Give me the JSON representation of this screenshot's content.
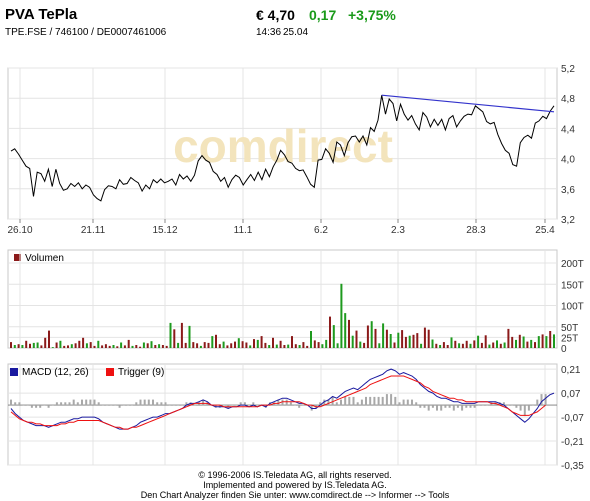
{
  "header": {
    "name": "PVA TePla",
    "price": "€ 4,70",
    "change": "0,17",
    "change_pct": "+3,75%",
    "identifiers": "TPE.FSE  /  746100  /  DE0007461006",
    "time": "14:36",
    "date": "25.04",
    "positive_color": "#1a9a1a"
  },
  "chart_data": [
    {
      "type": "line",
      "panel": "price",
      "x_tick_labels": [
        "26.10",
        "21.11",
        "15.12",
        "11.1",
        "6.2",
        "2.3",
        "28.3",
        "25.4"
      ],
      "y_ticks": [
        "3,2",
        "3,6",
        "4,0",
        "4,4",
        "4,8",
        "5,2"
      ],
      "ylim": [
        3.2,
        5.2
      ],
      "y_axis_side": "right",
      "grid": true,
      "line_color": "#000000",
      "watermark": "comdirect",
      "values": [
        4.1,
        4.13,
        4.06,
        3.98,
        3.9,
        3.87,
        3.5,
        3.82,
        3.8,
        3.7,
        3.86,
        3.63,
        3.86,
        3.67,
        3.58,
        3.6,
        3.67,
        3.63,
        3.68,
        3.6,
        3.65,
        3.62,
        3.52,
        3.47,
        3.44,
        3.59,
        3.64,
        3.63,
        3.6,
        3.72,
        3.66,
        3.67,
        3.75,
        3.71,
        3.68,
        3.57,
        3.65,
        3.6,
        3.72,
        3.68,
        3.73,
        3.68,
        3.7,
        3.73,
        3.65,
        3.79,
        3.73,
        3.77,
        3.7,
        3.78,
        3.97,
        4.04,
        3.98,
        3.95,
        3.83,
        3.79,
        3.7,
        3.75,
        3.62,
        3.72,
        3.78,
        3.75,
        3.65,
        3.72,
        3.79,
        3.71,
        3.82,
        3.72,
        3.86,
        3.76,
        3.89,
        3.98,
        4.11,
        4.05,
        3.96,
        3.94,
        3.87,
        3.84,
        3.85,
        3.76,
        3.66,
        3.62,
        3.98,
        3.99,
        4.13,
        4.07,
        3.95,
        4.22,
        4.18,
        4.04,
        4.21,
        4.29,
        4.3,
        4.22,
        4.3,
        4.18,
        4.41,
        4.36,
        4.51,
        4.84,
        4.59,
        4.79,
        4.73,
        4.5,
        4.72,
        4.59,
        4.51,
        4.57,
        4.46,
        4.38,
        4.61,
        4.55,
        4.42,
        4.52,
        4.44,
        4.52,
        4.38,
        4.53,
        4.57,
        4.42,
        4.5,
        4.56,
        4.59,
        4.58,
        4.7,
        4.66,
        4.62,
        4.49,
        4.46,
        4.48,
        4.32,
        4.2,
        4.11,
        4.07,
        3.92,
        3.9,
        4.21,
        4.28,
        4.31,
        4.27,
        4.47,
        4.5,
        4.56,
        4.53,
        4.63,
        4.7
      ],
      "trendline": {
        "start_index": 99,
        "start_value": 4.84,
        "end_index": 145,
        "end_value": 4.62,
        "color": "#3333cc"
      }
    },
    {
      "type": "bar",
      "panel": "volume",
      "legend": [
        {
          "name": "Volumen",
          "color": "#8b1a1a"
        }
      ],
      "y_ticks": [
        "0",
        "25T",
        "50T",
        "100T",
        "150T",
        "200T"
      ],
      "ylim": [
        0,
        200
      ],
      "y_unit": "T",
      "grid": true,
      "up_color": "#1e9a1e",
      "down_color": "#8b1a1a",
      "values": [
        14,
        7,
        9,
        7,
        17,
        10,
        12,
        13,
        6,
        24,
        41,
        2,
        13,
        17,
        5,
        6,
        9,
        11,
        17,
        24,
        11,
        14,
        5,
        17,
        6,
        9,
        5,
        7,
        4,
        13,
        6,
        19,
        5,
        7,
        3,
        13,
        11,
        16,
        7,
        9,
        7,
        5,
        59,
        44,
        12,
        59,
        12,
        52,
        14,
        11,
        5,
        14,
        12,
        28,
        31,
        9,
        15,
        6,
        11,
        15,
        23,
        16,
        13,
        6,
        21,
        19,
        28,
        12,
        7,
        24,
        8,
        17,
        7,
        8,
        28,
        9,
        7,
        14,
        5,
        40,
        18,
        14,
        9,
        19,
        74,
        54,
        11,
        151,
        82,
        66,
        29,
        41,
        15,
        12,
        53,
        63,
        45,
        11,
        58,
        43,
        33,
        13,
        36,
        42,
        26,
        29,
        31,
        35,
        10,
        48,
        43,
        20,
        10,
        7,
        14,
        7,
        25,
        17,
        11,
        10,
        17,
        10,
        18,
        29,
        12,
        30,
        8,
        13,
        18,
        10,
        13,
        45,
        26,
        19,
        31,
        27,
        15,
        19,
        14,
        28,
        32,
        28,
        40,
        32
      ],
      "up": [
        0,
        1,
        0,
        1,
        0,
        0,
        1,
        1,
        0,
        0,
        0,
        1,
        0,
        1,
        0,
        0,
        1,
        0,
        0,
        0,
        1,
        0,
        0,
        1,
        0,
        0,
        0,
        1,
        0,
        1,
        0,
        0,
        1,
        0,
        0,
        1,
        0,
        1,
        0,
        1,
        0,
        0,
        1,
        0,
        1,
        0,
        0,
        1,
        0,
        0,
        1,
        0,
        0,
        1,
        0,
        0,
        1,
        0,
        0,
        0,
        1,
        0,
        0,
        1,
        0,
        1,
        0,
        0,
        1,
        0,
        1,
        0,
        0,
        1,
        0,
        0,
        1,
        0,
        0,
        1,
        0,
        0,
        1,
        1,
        0,
        1,
        1,
        1,
        1,
        0,
        1,
        0,
        1,
        0,
        0,
        1,
        0,
        1,
        1,
        0,
        1,
        0,
        1,
        0,
        0,
        1,
        0,
        0,
        1,
        0,
        0,
        1,
        0,
        1,
        0,
        0,
        1,
        0,
        1,
        0,
        0,
        1,
        0,
        1,
        0,
        0,
        1,
        0,
        1,
        0,
        1,
        0,
        0,
        1,
        0,
        1,
        0,
        1,
        0,
        1,
        0,
        1,
        0,
        1
      ]
    },
    {
      "type": "line",
      "panel": "macd",
      "series": [
        {
          "name": "MACD (12, 26)",
          "color": "#1a1aa0",
          "values": [
            -0.02,
            -0.05,
            -0.07,
            -0.09,
            -0.1,
            -0.11,
            -0.12,
            -0.12,
            -0.12,
            -0.13,
            -0.12,
            -0.11,
            -0.1,
            -0.1,
            -0.09,
            -0.08,
            -0.08,
            -0.07,
            -0.07,
            -0.07,
            -0.07,
            -0.08,
            -0.1,
            -0.11,
            -0.12,
            -0.13,
            -0.14,
            -0.14,
            -0.14,
            -0.13,
            -0.12,
            -0.1,
            -0.09,
            -0.08,
            -0.07,
            -0.07,
            -0.06,
            -0.05,
            -0.05,
            -0.04,
            -0.03,
            -0.02,
            0,
            0.01,
            0.01,
            0.02,
            0.03,
            0.02,
            0,
            -0.01,
            -0.01,
            -0.01,
            -0.02,
            -0.01,
            -0.01,
            0,
            0,
            -0.01,
            0,
            -0.01,
            0,
            -0.01,
            0.01,
            0.02,
            0.03,
            0.04,
            0.04,
            0.03,
            0.02,
            0.01,
            0.01,
            0,
            -0.02,
            -0.02,
            0,
            0.02,
            0.03,
            0.05,
            0.04,
            0.06,
            0.08,
            0.09,
            0.1,
            0.09,
            0.11,
            0.13,
            0.15,
            0.16,
            0.17,
            0.18,
            0.2,
            0.21,
            0.2,
            0.18,
            0.19,
            0.18,
            0.17,
            0.15,
            0.12,
            0.1,
            0.08,
            0.07,
            0.05,
            0.04,
            0.04,
            0.03,
            0.02,
            0.02,
            0.01,
            0.01,
            0.01,
            0.01,
            0.02,
            0.02,
            0.02,
            0.02,
            0.02,
            0.01,
            0,
            -0.02,
            -0.04,
            -0.06,
            -0.08,
            -0.1,
            -0.08,
            -0.05,
            -0.02,
            0.02,
            0.04,
            0.06,
            0.07
          ]
        },
        {
          "name": "Trigger (9)",
          "color": "#ee1111",
          "values": [
            -0.04,
            -0.06,
            -0.08,
            -0.09,
            -0.1,
            -0.1,
            -0.11,
            -0.11,
            -0.12,
            -0.12,
            -0.12,
            -0.12,
            -0.11,
            -0.11,
            -0.1,
            -0.1,
            -0.09,
            -0.09,
            -0.09,
            -0.09,
            -0.09,
            -0.09,
            -0.1,
            -0.11,
            -0.12,
            -0.13,
            -0.13,
            -0.14,
            -0.14,
            -0.13,
            -0.13,
            -0.12,
            -0.11,
            -0.1,
            -0.09,
            -0.08,
            -0.07,
            -0.06,
            -0.05,
            -0.04,
            -0.03,
            -0.02,
            -0.01,
            0,
            0.01,
            0.01,
            0.01,
            0.01,
            0,
            0,
            0,
            -0.01,
            -0.01,
            -0.01,
            -0.01,
            -0.01,
            -0.01,
            -0.01,
            -0.01,
            -0.01,
            0,
            0,
            0,
            0.01,
            0.01,
            0.02,
            0.02,
            0.02,
            0.02,
            0.02,
            0.01,
            0,
            0,
            -0.01,
            -0.01,
            0,
            0.01,
            0.02,
            0.03,
            0.04,
            0.05,
            0.06,
            0.07,
            0.08,
            0.09,
            0.1,
            0.12,
            0.13,
            0.14,
            0.15,
            0.16,
            0.17,
            0.17,
            0.17,
            0.17,
            0.16,
            0.15,
            0.14,
            0.13,
            0.11,
            0.1,
            0.08,
            0.07,
            0.06,
            0.05,
            0.04,
            0.04,
            0.03,
            0.03,
            0.02,
            0.02,
            0.02,
            0.02,
            0.02,
            0.02,
            0.01,
            0.01,
            0,
            -0.01,
            -0.02,
            -0.04,
            -0.05,
            -0.06,
            -0.06,
            -0.06,
            -0.05,
            -0.04,
            -0.02,
            0
          ]
        }
      ],
      "histogram_color": "#a8a8a8",
      "y_ticks": [
        "0,21",
        "0,07",
        "-0,07",
        "-0,21",
        "-0,35"
      ],
      "ylim": [
        -0.35,
        0.24
      ],
      "grid": true
    }
  ],
  "footer": {
    "line1": "© 1996-2006 IS.Teledata AG, all rights reserved.",
    "line2": "Implemented and powered by IS.Teledata AG.",
    "line3": "Den Chart Analyzer finden Sie unter: www.comdirect.de --> Informer --> Tools"
  }
}
